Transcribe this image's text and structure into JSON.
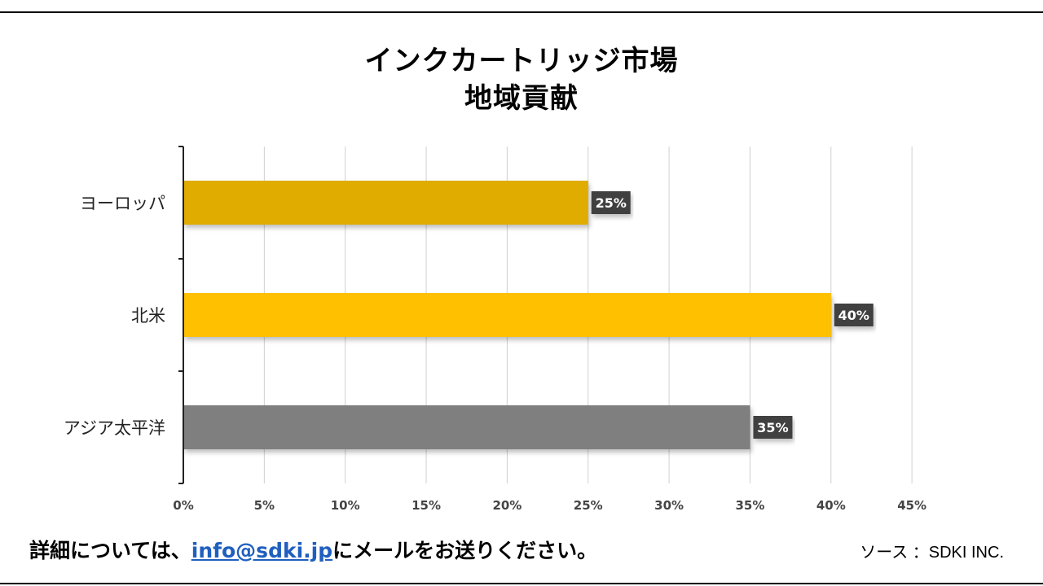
{
  "title_line1": "インクカートリッジ市場",
  "title_line2": "地域貢献",
  "footer": {
    "prefix": "詳細については、",
    "email": "info@sdki.jp",
    "suffix": "にメールをお送りください。"
  },
  "source": "ソース ：SDKI INC.",
  "chart_data": {
    "type": "bar",
    "orientation": "horizontal",
    "categories": [
      "ヨーロッパ",
      "北米",
      "アジア太平洋"
    ],
    "values": [
      25,
      40,
      35
    ],
    "value_labels": [
      "25%",
      "40%",
      "35%"
    ],
    "bar_colors": [
      "#e0ac00",
      "#ffc000",
      "#7f7f7f"
    ],
    "xlim": [
      0,
      45
    ],
    "xticks": [
      0,
      5,
      10,
      15,
      20,
      25,
      30,
      35,
      40,
      45
    ],
    "xtick_labels": [
      "0%",
      "5%",
      "10%",
      "15%",
      "20%",
      "25%",
      "30%",
      "35%",
      "40%",
      "45%"
    ],
    "grid": true,
    "legend": "none"
  }
}
